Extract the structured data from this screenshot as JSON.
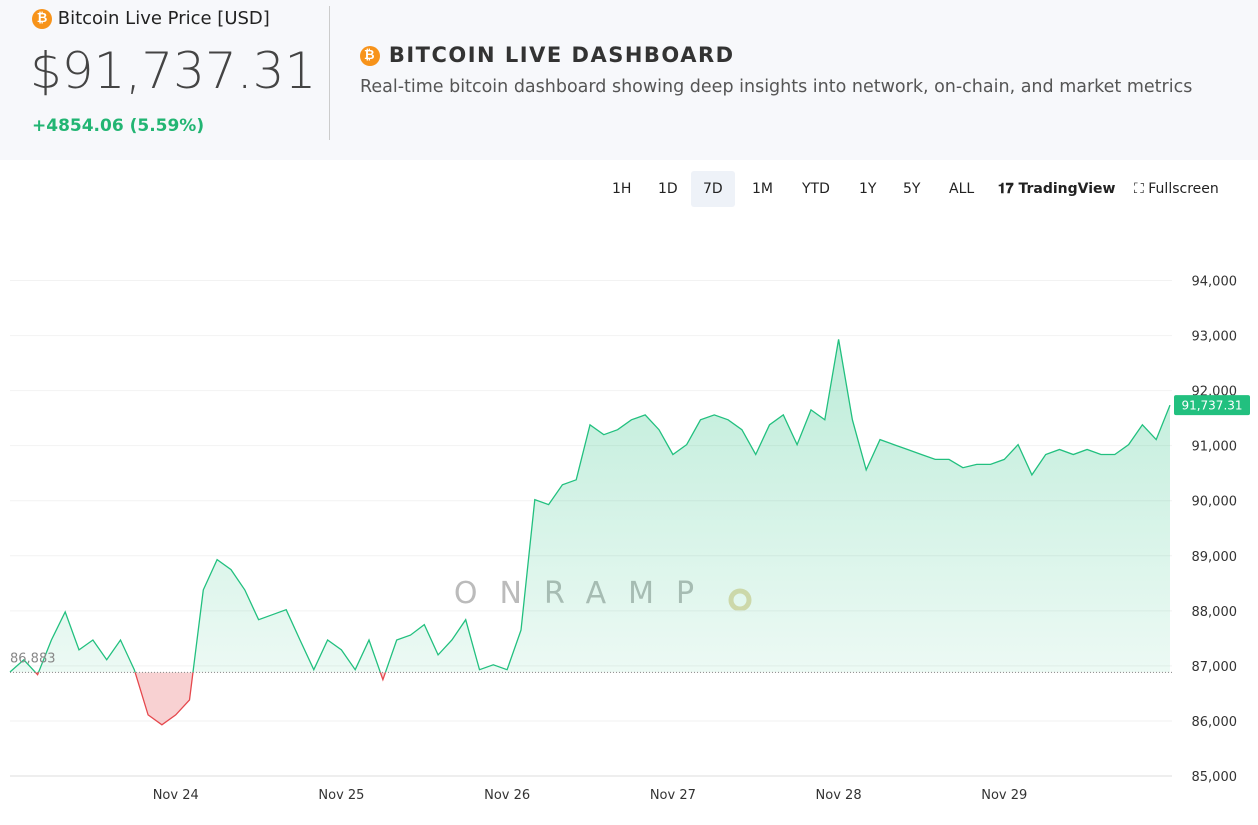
{
  "header": {
    "price_label": "Bitcoin Live Price [USD]",
    "price": "$91,737.31",
    "change": "+4854.06 (5.59%)",
    "title": "BITCOIN LIVE DASHBOARD",
    "subtitle": "Real-time bitcoin dashboard showing deep insights into network, on-chain, and market metrics"
  },
  "toolbar": {
    "ranges": [
      "1H",
      "1D",
      "7D",
      "1M",
      "YTD",
      "1Y",
      "5Y",
      "ALL"
    ],
    "active": "7D",
    "tradingview": "TradingView",
    "fullscreen": "Fullscreen"
  },
  "watermark": "ONRAMP",
  "chart_data": {
    "type": "baseline-area",
    "categories": [
      null,
      null,
      null,
      null,
      null,
      null,
      null,
      null,
      null,
      null,
      null,
      null,
      "Nov 24",
      null,
      null,
      null,
      null,
      null,
      null,
      null,
      null,
      null,
      null,
      null,
      "Nov 25",
      null,
      null,
      null,
      null,
      null,
      null,
      null,
      null,
      null,
      null,
      null,
      "Nov 26",
      null,
      null,
      null,
      null,
      null,
      null,
      null,
      null,
      null,
      null,
      null,
      "Nov 27",
      null,
      null,
      null,
      null,
      null,
      null,
      null,
      null,
      null,
      null,
      null,
      "Nov 28",
      null,
      null,
      null,
      null,
      null,
      null,
      null,
      null,
      null,
      null,
      null,
      "Nov 29",
      null,
      null,
      null,
      null,
      null,
      null,
      null,
      null,
      null,
      null,
      null,
      null
    ],
    "series": [
      {
        "name": "BTC",
        "color": "#22c07f",
        "values": [
          86890,
          87110,
          86840,
          87470,
          87980,
          87290,
          87470,
          87110,
          87470,
          86930,
          86110,
          85930,
          86110,
          86380,
          88380,
          88930,
          88750,
          88380,
          87840,
          87930,
          88020,
          87470,
          86930,
          87470,
          87290,
          86930,
          87470,
          86750,
          87470,
          87560,
          87750,
          87200,
          87470,
          87840,
          86930,
          87020,
          86930,
          87650,
          90020,
          89930,
          90290,
          90380,
          91380,
          91200,
          91290,
          91470,
          91560,
          91290,
          90840,
          91020,
          91470,
          91560,
          91470,
          91290,
          90840,
          91380,
          91560,
          91020,
          91650,
          91470,
          92930,
          91470,
          90560,
          91110,
          91020,
          90930,
          90840,
          90750,
          90750,
          90600,
          90660,
          90660,
          90750,
          91020,
          90470,
          90840,
          90930,
          90840,
          90930,
          90840,
          90840,
          91020,
          91380,
          91110,
          91737.31
        ],
        "value_labels": {
          "84": "91,737.31"
        }
      }
    ],
    "baseline": {
      "value": 86883,
      "label": "86,883"
    },
    "below_color": "#e5484d",
    "ylim": [
      85000,
      94500
    ],
    "yticks": [
      {
        "value": 85000,
        "label": "85,000"
      },
      {
        "value": 86000,
        "label": "86,000"
      },
      {
        "value": 87000,
        "label": "87,000"
      },
      {
        "value": 88000,
        "label": "88,000"
      },
      {
        "value": 89000,
        "label": "89,000"
      },
      {
        "value": 90000,
        "label": "90,000"
      },
      {
        "value": 91000,
        "label": "91,000"
      },
      {
        "value": 92000,
        "label": "92,000"
      },
      {
        "value": 93000,
        "label": "93,000"
      },
      {
        "value": 94000,
        "label": "94,000"
      }
    ],
    "grid": true
  }
}
